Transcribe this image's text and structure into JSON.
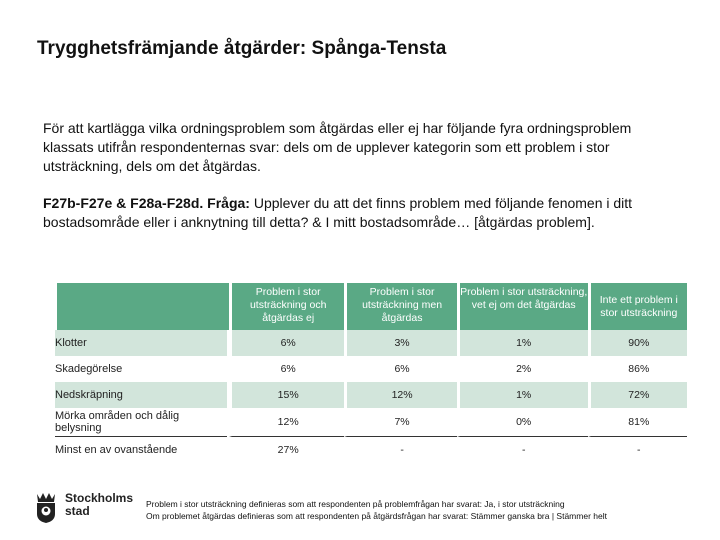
{
  "slide": {
    "title": "Trygghetsfrämjande åtgärder: Spånga-Tensta",
    "intro": "För att kartlägga vilka ordningsproblem som åtgärdas eller ej har följande fyra ordningsproblem klassats utifrån respondenternas svar: dels om de upplever kategorin som ett problem i stor utsträckning, dels om det åtgärdas.",
    "question_label": "F27b-F27e & F28a-F28d. Fråga:",
    "question_text": " Upplever du att det finns problem med följande fenomen i ditt bostadsområde eller i anknytning till detta? & I mitt bostadsområde… [åtgärdas problem]."
  },
  "table": {
    "columns": [
      "Problem i stor utsträckning och åtgärdas ej",
      "Problem i stor utsträckning men åtgärdas",
      "Problem i stor utsträckning, vet ej om det åtgärdas",
      "Inte ett problem i stor utsträckning"
    ],
    "rows": [
      {
        "label": "Klotter",
        "values": [
          "6%",
          "3%",
          "1%",
          "90%"
        ]
      },
      {
        "label": "Skadegörelse",
        "values": [
          "6%",
          "6%",
          "2%",
          "86%"
        ]
      },
      {
        "label": "Nedskräpning",
        "values": [
          "15%",
          "12%",
          "1%",
          "72%"
        ]
      },
      {
        "label": "Mörka områden och dålig belysning",
        "values": [
          "12%",
          "7%",
          "0%",
          "81%"
        ]
      },
      {
        "label": "Minst en av ovanstående",
        "values": [
          "27%",
          "-",
          "-",
          "-"
        ]
      }
    ]
  },
  "logo": {
    "line1": "Stockholms",
    "line2": "stad"
  },
  "footnote": {
    "line1": "Problem i stor utsträckning definieras som att respondenten på problemfrågan har svarat: Ja, i stor utsträckning",
    "line2": "Om problemet åtgärdas definieras som att respondenten på åtgärdsfrågan har svarat: Stämmer ganska bra | Stämmer helt"
  },
  "colors": {
    "header_green": "#5aa985",
    "row_shade": "#d2e5db"
  }
}
